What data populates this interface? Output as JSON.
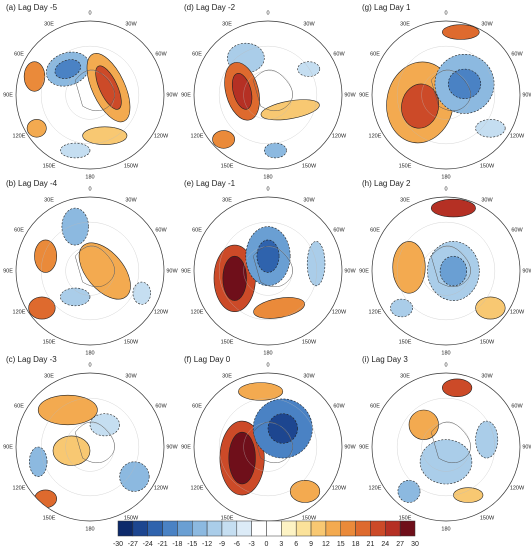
{
  "panels": [
    {
      "title": "(a) Lag Day -5"
    },
    {
      "title": "(d) Lag Day -2"
    },
    {
      "title": "(g) Lag Day 1"
    },
    {
      "title": "(b) Lag Day -4"
    },
    {
      "title": "(e) Lag Day -1"
    },
    {
      "title": "(h) Lag Day 2"
    },
    {
      "title": "(c) Lag Day -3"
    },
    {
      "title": "(f) Lag Day 0"
    },
    {
      "title": "(i) Lag Day 3"
    }
  ],
  "longitude_labels": [
    "0",
    "30W",
    "60W",
    "90W",
    "120W",
    "150W",
    "180",
    "150E",
    "120E",
    "90E",
    "60E",
    "30E"
  ],
  "colorbar": {
    "ticks": [
      -30,
      -27,
      -24,
      -21,
      -18,
      -15,
      -12,
      -9,
      -6,
      -3,
      0,
      3,
      6,
      9,
      12,
      15,
      18,
      21,
      24,
      27,
      30
    ],
    "colors": [
      "#0d2a6b",
      "#1d4690",
      "#2f63ad",
      "#4a82c4",
      "#6a9fd3",
      "#8cb9e0",
      "#aacde9",
      "#c5def1",
      "#dcebf7",
      "#ffffff",
      "#ffffff",
      "#fdf3c4",
      "#fbe29a",
      "#f8c872",
      "#f3aa50",
      "#ea8a3a",
      "#de6a2e",
      "#cc4a28",
      "#b53024",
      "#6f0f1a"
    ]
  }
}
